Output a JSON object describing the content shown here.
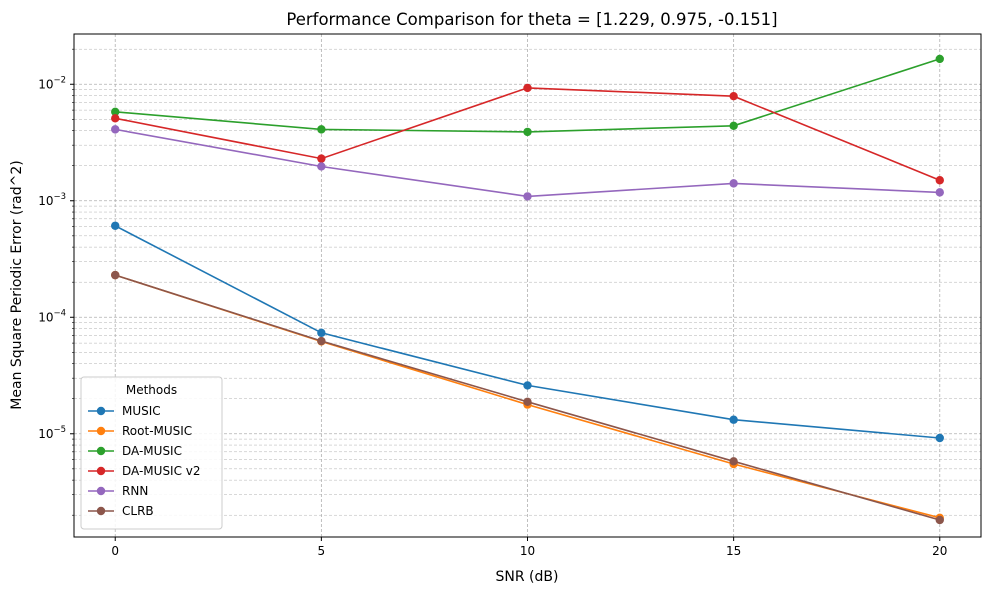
{
  "chart_data": {
    "type": "line",
    "title": "Performance Comparison for theta = [1.229, 0.975, -0.151]",
    "xlabel": "SNR (dB)",
    "ylabel": "Mean Square Periodic Error (rad^2)",
    "yscale": "log",
    "xlim": [
      -1,
      21
    ],
    "ylim": [
      1.3e-06,
      0.027
    ],
    "x": [
      0,
      5,
      10,
      15,
      20
    ],
    "xticks": [
      "0",
      "5",
      "10",
      "15",
      "20"
    ],
    "yticks": [
      {
        "base": "10",
        "exp": "−5",
        "value": 1e-05
      },
      {
        "base": "10",
        "exp": "−4",
        "value": 0.0001
      },
      {
        "base": "10",
        "exp": "−3",
        "value": 0.001
      },
      {
        "base": "10",
        "exp": "−2",
        "value": 0.01
      }
    ],
    "grid": true,
    "legend": {
      "title": "Methods",
      "placement": "lower-left"
    },
    "series": [
      {
        "name": "MUSIC",
        "color": "#1f77b4",
        "values": [
          0.00061,
          7.35e-05,
          2.6e-05,
          1.32e-05,
          9.2e-06
        ]
      },
      {
        "name": "Root-MUSIC",
        "color": "#ff7f0e",
        "values": [
          0.00023,
          6.2e-05,
          1.78e-05,
          5.5e-06,
          1.9e-06
        ]
      },
      {
        "name": "DA-MUSIC",
        "color": "#2ca02c",
        "values": [
          0.0058,
          0.0041,
          0.0039,
          0.0044,
          0.0165
        ]
      },
      {
        "name": "DA-MUSIC v2",
        "color": "#d62728",
        "values": [
          0.0051,
          0.0023,
          0.0093,
          0.0079,
          0.0015
        ]
      },
      {
        "name": "RNN",
        "color": "#9467bd",
        "values": [
          0.0041,
          0.00197,
          0.00109,
          0.00141,
          0.00118
        ]
      },
      {
        "name": "CLRB",
        "color": "#8c564b",
        "values": [
          0.00023,
          6.25e-05,
          1.88e-05,
          5.8e-06,
          1.82e-06
        ]
      }
    ]
  }
}
